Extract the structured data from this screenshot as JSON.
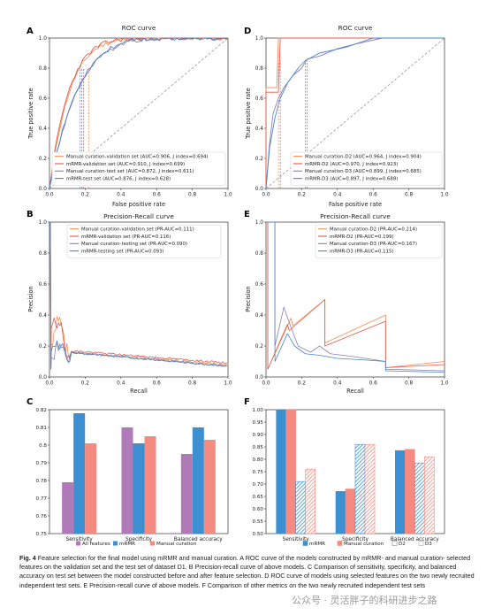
{
  "panels": {
    "A": {
      "letter": "A",
      "title": "ROC curve",
      "xlabel": "False positive rate",
      "ylabel": "True positive rate",
      "legend": [
        "Manual curation-validation set (AUC=0.906, J index=0.694)",
        "mRMR-validation set (AUC=0.910, J index=0.699)",
        "Manual curation-test set (AUC=0.872, J index=0.611)",
        "mRMR-test set (AUC=0.876, J index=0.628)"
      ]
    },
    "B": {
      "letter": "B",
      "title": "Precision-Recall curve",
      "xlabel": "Recall",
      "ylabel": "Precision",
      "legend": [
        "Manual curation-validation set (PR-AUC=0.111)",
        "mRMR-validation set (PR-AUC=0.116)",
        "Manual curation-testing set (PR-AUC=0.090)",
        "mRMR-testing set (PR-AUC=0.093)"
      ]
    },
    "C": {
      "letter": "C"
    },
    "D": {
      "letter": "D",
      "title": "ROC curve",
      "xlabel": "False positive rate",
      "ylabel": "True positive rate",
      "legend": [
        "Manual curation-D2 (AUC=0.964, J index=0.904)",
        "mRMR-D2 (AUC=0.970, J index=0.923)",
        "Manual curation-D3 (AUC=0.899, J index=0.685)",
        "mRMR-D3 (AUC=0.897, J index=0.688)"
      ]
    },
    "E": {
      "letter": "E",
      "title": "Precision-Recall curve",
      "xlabel": "Recall",
      "ylabel": "Precision",
      "legend": [
        "Manual curation-D2 (PR-AUC=0.214)",
        "mRMR-D2 (PR-AUC=0.199)",
        "Manual curation-D3 (PR-AUC=0.167)",
        "mRMR-D3 (PR-AUC=0.115)"
      ]
    },
    "F": {
      "letter": "F"
    }
  },
  "colors": {
    "orange": "#f28e52",
    "red": "#e05a4e",
    "purple": "#8e7bb5",
    "blue": "#4a86c5",
    "bar_purple": "#b07ab8",
    "bar_blue": "#3c8fd0",
    "bar_salmon": "#f48a80",
    "gray_dash": "#9a9a9a"
  },
  "chart_data": [
    {
      "panel": "C",
      "type": "bar",
      "categories": [
        "Sensitivity",
        "Specificity",
        "Balanced accuracy"
      ],
      "series": [
        {
          "name": "All features",
          "values": [
            0.779,
            0.81,
            0.795
          ]
        },
        {
          "name": "mRMR",
          "values": [
            0.818,
            0.801,
            0.81
          ]
        },
        {
          "name": "Manual curation",
          "values": [
            0.801,
            0.805,
            0.803
          ]
        }
      ],
      "ylim": [
        0.75,
        0.82
      ],
      "yticks": [
        "0.75",
        "0.76",
        "0.77",
        "0.78",
        "0.79",
        "0.8",
        "0.81",
        "0.82"
      ]
    },
    {
      "panel": "F",
      "type": "bar",
      "categories": [
        "Sensitivity",
        "Specificity",
        "Balanced accuracy"
      ],
      "series": [
        {
          "name": "mRMR D2",
          "values": [
            1.0,
            0.67,
            0.835
          ]
        },
        {
          "name": "Manual curation D2",
          "values": [
            1.0,
            0.68,
            0.84
          ]
        },
        {
          "name": "mRMR D3",
          "values": [
            0.71,
            0.86,
            0.785
          ]
        },
        {
          "name": "Manual curation D3",
          "values": [
            0.76,
            0.86,
            0.81
          ]
        }
      ],
      "legend": [
        "mRMR",
        "Manual curation",
        "D2",
        "D3"
      ],
      "ylim": [
        0.5,
        1.0
      ],
      "yticks": [
        "0.50",
        "0.55",
        "0.60",
        "0.65",
        "0.70",
        "0.75",
        "0.80",
        "0.85",
        "0.90",
        "0.95",
        "1.00"
      ]
    }
  ],
  "caption": {
    "fig_label": "Fig. 4",
    "text": "Feature selection for the final model using mRMR and manual curation. A ROC curve of the models constructed by mRMR- and manual curation- selected features on the validation set and the test set of dataset D1. B Precision-recall curve of above models. C Comparison of sensitivity, specificity, and balanced accuracy on test set between the model constructed before and after feature selection. D ROC curve of models using selected features on the two newly recruited independent test sets. E Precision-recall curve of above models. F Comparison of other metrics on the two newly recruited independent test sets"
  },
  "watermark": "公众号 · 灵活胖子的科研进步之路"
}
